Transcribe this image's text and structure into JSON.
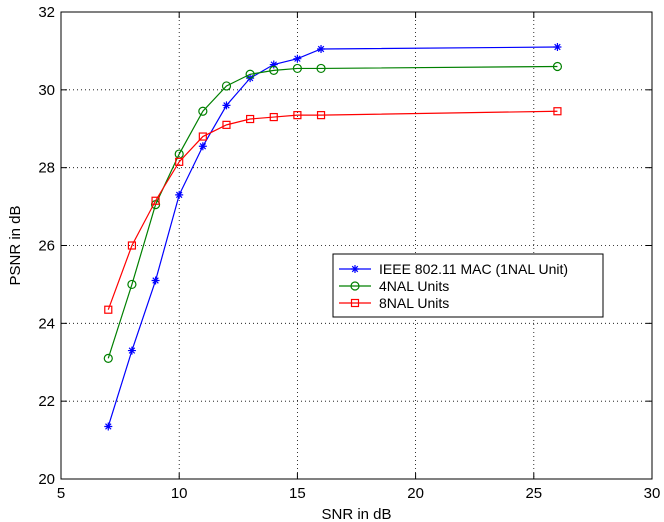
{
  "chart_data": {
    "type": "line",
    "title": "",
    "xlabel": "SNR in dB",
    "ylabel": "PSNR in dB",
    "xlim": [
      5,
      30
    ],
    "ylim": [
      20,
      32
    ],
    "xticks": [
      5,
      10,
      15,
      20,
      25,
      30
    ],
    "yticks": [
      20,
      22,
      24,
      26,
      28,
      30,
      32
    ],
    "grid": true,
    "legend_position": "center-right",
    "series": [
      {
        "name": "IEEE 802.11 MAC (1NAL Unit)",
        "color": "#0000ff",
        "marker": "asterisk",
        "x": [
          7,
          8,
          9,
          10,
          11,
          12,
          13,
          14,
          15,
          16,
          26
        ],
        "y": [
          21.35,
          23.3,
          25.1,
          27.3,
          28.55,
          29.6,
          30.3,
          30.65,
          30.8,
          31.05,
          31.1
        ]
      },
      {
        "name": "4NAL Units",
        "color": "#008000",
        "marker": "circle",
        "x": [
          7,
          8,
          9,
          10,
          11,
          12,
          13,
          14,
          15,
          16,
          26
        ],
        "y": [
          23.1,
          25.0,
          27.05,
          28.35,
          29.45,
          30.1,
          30.4,
          30.5,
          30.55,
          30.55,
          30.6
        ]
      },
      {
        "name": "8NAL Units",
        "color": "#ff0000",
        "marker": "square",
        "x": [
          7,
          8,
          9,
          10,
          11,
          12,
          13,
          14,
          15,
          16,
          26
        ],
        "y": [
          24.35,
          26.0,
          27.15,
          28.15,
          28.8,
          29.1,
          29.25,
          29.3,
          29.35,
          29.35,
          29.45
        ]
      }
    ]
  }
}
